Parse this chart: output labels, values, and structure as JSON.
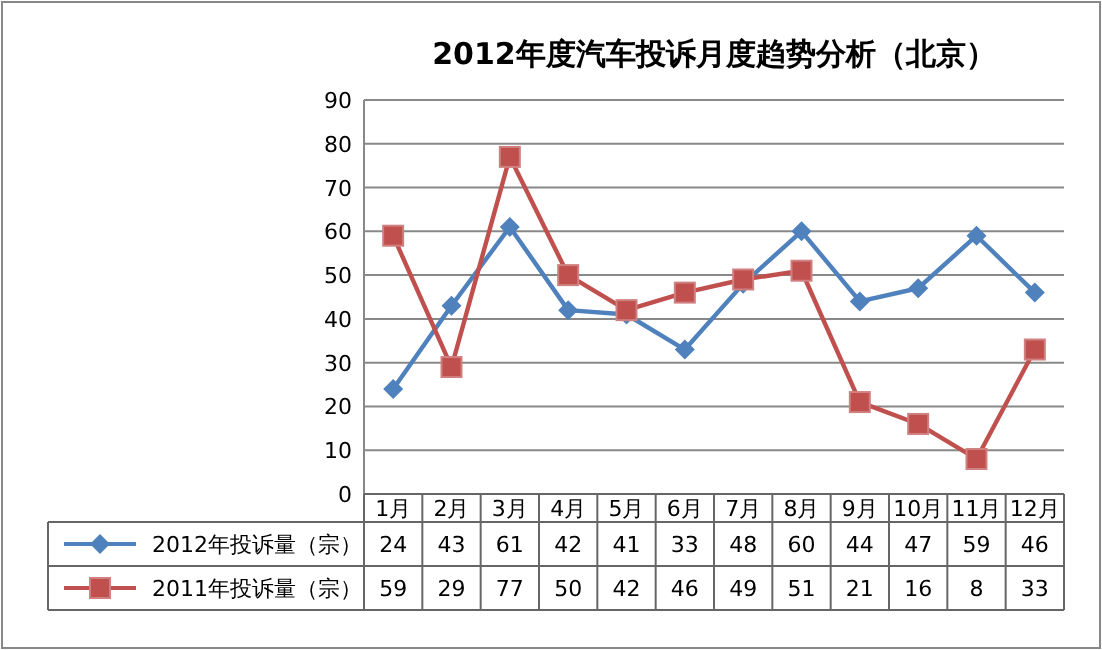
{
  "chart_data": {
    "type": "line",
    "title": "2012年度汽车投诉月度趋势分析（北京）",
    "categories": [
      "1月",
      "2月",
      "3月",
      "4月",
      "5月",
      "6月",
      "7月",
      "8月",
      "9月",
      "10月",
      "11月",
      "12月"
    ],
    "series": [
      {
        "name": "2012年投诉量（宗）",
        "color": "#4f81bd",
        "marker": "diamond",
        "values": [
          24,
          43,
          61,
          42,
          41,
          33,
          48,
          60,
          44,
          47,
          59,
          46
        ]
      },
      {
        "name": "2011年投诉量（宗）",
        "color": "#c0504d",
        "marker": "square",
        "values": [
          59,
          29,
          77,
          50,
          42,
          46,
          49,
          51,
          21,
          16,
          8,
          33
        ]
      }
    ],
    "ylim": [
      0,
      90
    ],
    "yticks": [
      0,
      10,
      20,
      30,
      40,
      50,
      60,
      70,
      80,
      90
    ],
    "grid": "y",
    "data_labels": true,
    "legend": "bottom left"
  }
}
